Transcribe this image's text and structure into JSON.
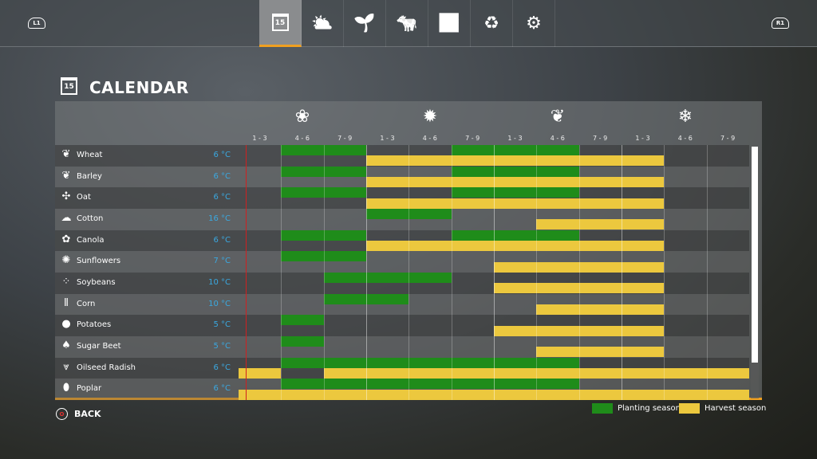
{
  "nav": {
    "left_shoulder": "L1",
    "right_shoulder": "R1",
    "tabs": [
      {
        "name": "calendar",
        "glyph": "15",
        "selected": true
      },
      {
        "name": "weather",
        "glyph": "⛅"
      },
      {
        "name": "crops",
        "glyph": "🌱"
      },
      {
        "name": "animals",
        "glyph": "🐄"
      },
      {
        "name": "statistics",
        "glyph": "📊"
      },
      {
        "name": "finances",
        "glyph": "♻"
      },
      {
        "name": "settings",
        "glyph": "⚙"
      }
    ]
  },
  "page": {
    "title": "CALENDAR",
    "calendar_day": "15"
  },
  "seasons": [
    {
      "name": "spring",
      "glyph": "❀"
    },
    {
      "name": "summer",
      "glyph": "✹"
    },
    {
      "name": "autumn",
      "glyph": "❦"
    },
    {
      "name": "winter",
      "glyph": "❄"
    }
  ],
  "periods": [
    "1 - 3",
    "4 - 6",
    "7 - 9",
    "1 - 3",
    "4 - 6",
    "7 - 9",
    "1 - 3",
    "4 - 6",
    "7 - 9",
    "1 - 3",
    "4 - 6",
    "7 - 9"
  ],
  "crops": [
    {
      "name": "Wheat",
      "temp": "6 °C",
      "glyph": "❦",
      "planting": [
        [
          1,
          3
        ],
        [
          5,
          8
        ]
      ],
      "harvest": [
        [
          3,
          10
        ]
      ]
    },
    {
      "name": "Barley",
      "temp": "6 °C",
      "glyph": "❦",
      "planting": [
        [
          1,
          3
        ],
        [
          5,
          8
        ]
      ],
      "harvest": [
        [
          3,
          10
        ]
      ]
    },
    {
      "name": "Oat",
      "temp": "6 °C",
      "glyph": "✣",
      "planting": [
        [
          1,
          3
        ],
        [
          5,
          8
        ]
      ],
      "harvest": [
        [
          3,
          10
        ]
      ]
    },
    {
      "name": "Cotton",
      "temp": "16 °C",
      "glyph": "☁",
      "planting": [
        [
          3,
          5
        ]
      ],
      "harvest": [
        [
          7,
          10
        ]
      ]
    },
    {
      "name": "Canola",
      "temp": "6 °C",
      "glyph": "✿",
      "planting": [
        [
          1,
          3
        ],
        [
          5,
          8
        ]
      ],
      "harvest": [
        [
          3,
          10
        ]
      ]
    },
    {
      "name": "Sunflowers",
      "temp": "7 °C",
      "glyph": "✺",
      "planting": [
        [
          1,
          3
        ]
      ],
      "harvest": [
        [
          6,
          10
        ]
      ]
    },
    {
      "name": "Soybeans",
      "temp": "10 °C",
      "glyph": "⁘",
      "planting": [
        [
          2,
          5
        ]
      ],
      "harvest": [
        [
          6,
          10
        ]
      ]
    },
    {
      "name": "Corn",
      "temp": "10 °C",
      "glyph": "⦀",
      "planting": [
        [
          2,
          4
        ]
      ],
      "harvest": [
        [
          7,
          10
        ]
      ]
    },
    {
      "name": "Potatoes",
      "temp": "5 °C",
      "glyph": "●",
      "planting": [
        [
          1,
          2
        ]
      ],
      "harvest": [
        [
          6,
          10
        ]
      ]
    },
    {
      "name": "Sugar Beet",
      "temp": "5 °C",
      "glyph": "♠",
      "planting": [
        [
          1,
          2
        ]
      ],
      "harvest": [
        [
          7,
          10
        ]
      ]
    },
    {
      "name": "Oilseed Radish",
      "temp": "6 °C",
      "glyph": "⩔",
      "planting": [
        [
          1,
          8
        ]
      ],
      "harvest": [
        [
          0,
          1
        ],
        [
          2,
          12
        ]
      ]
    },
    {
      "name": "Poplar",
      "temp": "6 °C",
      "glyph": "⬮",
      "planting": [
        [
          1,
          8
        ]
      ],
      "harvest": [
        [
          0,
          12
        ]
      ]
    }
  ],
  "legend": {
    "planting": "Planting season",
    "harvest": "Harvest season"
  },
  "colors": {
    "planting": "#1f8c1a",
    "harvest": "#ecc83e",
    "accent": "#f0a020",
    "temperature": "#3aa8e0",
    "current_time": "#d02020"
  },
  "footer": {
    "back_label": "BACK",
    "back_glyph": "O"
  }
}
